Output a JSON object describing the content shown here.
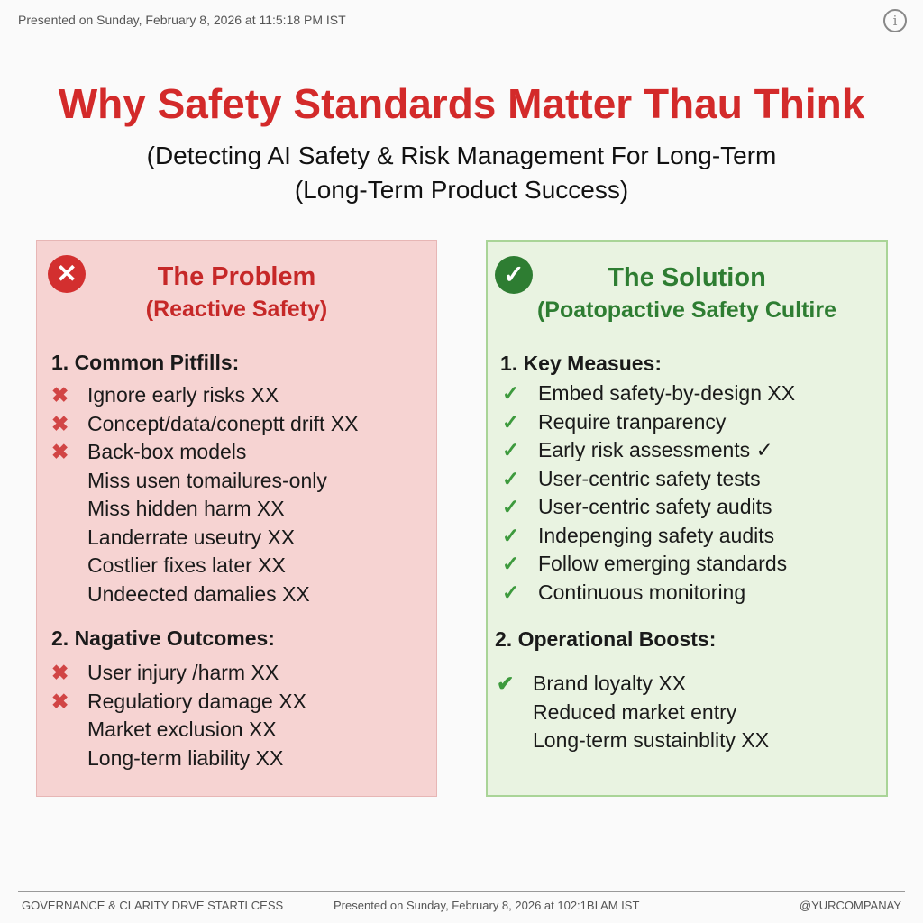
{
  "header": {
    "timestamp": "Presented on Sunday, February 8, 2026 at 11:5:18 PM IST",
    "info_icon": "info-icon"
  },
  "title": "Why Safety Standards Matter Thau Think",
  "subtitle": [
    "(Detecting AI Safety & Risk Management For Long-Term",
    "(Long-Term Product Success)"
  ],
  "problem": {
    "title": "The Problem",
    "subtitle": "(Reactive Safety)",
    "sections": [
      {
        "heading": "1. Common Pitfills:",
        "items": [
          {
            "text": "Ignore early risks XX",
            "icon": true
          },
          {
            "text": "Concept/data/coneptt drift XX",
            "icon": true
          },
          {
            "text": "Back-box models",
            "icon": true
          },
          {
            "text": "Miss usen tomailures-only",
            "icon": false
          },
          {
            "text": "Miss hidden harm XX",
            "icon": false
          },
          {
            "text": "Landerrate useutry XX",
            "icon": false
          },
          {
            "text": "Costlier fixes later XX",
            "icon": false
          },
          {
            "text": "Undeected damalies XX",
            "icon": false
          }
        ]
      },
      {
        "heading": "2. Nagative Outcomes:",
        "items": [
          {
            "text": "User injury /harm XX",
            "icon": true
          },
          {
            "text": "Regulatiory damage XX",
            "icon": true
          },
          {
            "text": "Market exclusion XX",
            "icon": false
          },
          {
            "text": "Long-term liability XX",
            "icon": false
          }
        ]
      }
    ]
  },
  "solution": {
    "title": "The Solution",
    "subtitle": "(Poatopactive Safety Cultire",
    "sections": [
      {
        "heading": "1. Key Measues:",
        "items": [
          {
            "text": "Embed safety-by-design XX",
            "icon": true
          },
          {
            "text": "Require tranparency",
            "icon": true
          },
          {
            "text": "Early risk assessments ✓",
            "icon": true
          },
          {
            "text": "User-centric safety tests",
            "icon": true
          },
          {
            "text": "User-centric safety audits",
            "icon": true
          },
          {
            "text": "Indepenging safety audits",
            "icon": true
          },
          {
            "text": "Follow emerging standards",
            "icon": true
          },
          {
            "text": "Continuous monitoring",
            "icon": true
          }
        ]
      },
      {
        "heading": "2. Operational Boosts:",
        "items": [
          {
            "text": "Brand loyalty XX",
            "icon": true
          },
          {
            "text": "Reduced market entry",
            "icon": false
          },
          {
            "text": "Long-term sustainblity XX",
            "icon": false
          }
        ]
      }
    ]
  },
  "footer": {
    "left": "GOVERNANCE & CLARITY DRVE STARTLCESS",
    "center": "Presented on Sunday, February 8, 2026 at 102:1BI AM IST",
    "right": "@YURCOMPANAY"
  }
}
